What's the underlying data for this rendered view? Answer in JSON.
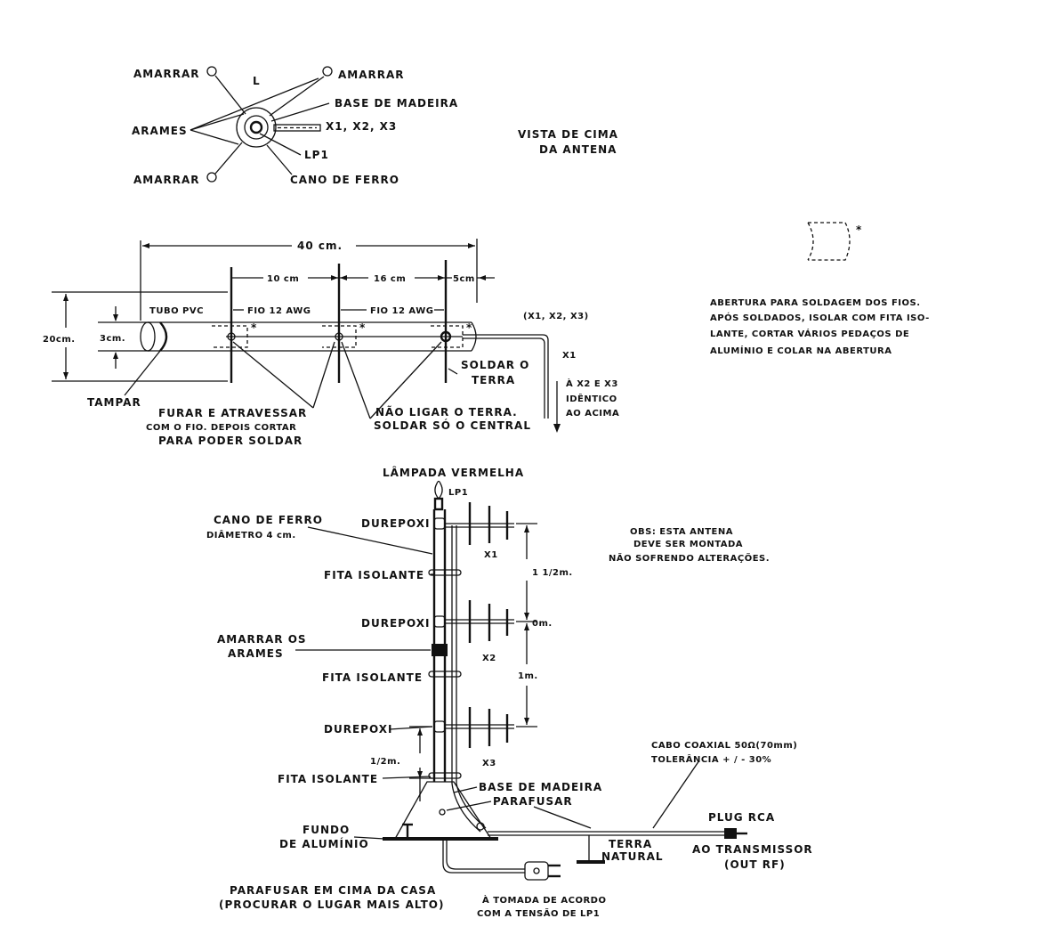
{
  "top_view": {
    "amarrar_tl": "AMARRAR",
    "amarrar_tr": "AMARRAR",
    "amarrar_bl": "AMARRAR",
    "l_label": "L",
    "base_madeira": "BASE DE MADEIRA",
    "arames": "ARAMES",
    "x_labels": "X1, X2, X3",
    "lp1": "LP1",
    "cano_ferro": "CANO DE FERRO",
    "title_line1": "VISTA DE CIMA",
    "title_line2": "DA ANTENA"
  },
  "detail": {
    "asterisk": "*",
    "note_lines": [
      "ABERTURA PARA SOLDAGEM DOS FIOS.",
      "APÓS SOLDADOS, ISOLAR COM FITA ISO-",
      "LANTE, CORTAR VÁRIOS PEDAÇOS DE",
      "ALUMÍNIO E COLAR NA ABERTURA"
    ]
  },
  "element": {
    "dim_40": "40 cm.",
    "dim_10": "10 cm",
    "dim_16": "16 cm",
    "dim_5": "5cm",
    "fio1": "FIO 12 AWG",
    "fio2": "FIO 12 AWG",
    "tubo_pvc": "TUBO PVC",
    "dim_20": "20cm.",
    "dim_3": "3cm.",
    "tampar": "TAMPAR",
    "x123": "(X1, X2, X3)",
    "x1": "X1",
    "soldar_line1": "SOLDAR O",
    "soldar_line2": "TERRA",
    "ax2_line1": "À X2 E X3",
    "ax2_line2": "IDÊNTICO",
    "ax2_line3": "AO ACIMA",
    "furar_line1": "FURAR E ATRAVESSAR",
    "furar_line2": "COM O FIO. DEPOIS CORTAR",
    "furar_line3": "PARA PODER SOLDAR",
    "nao_line1": "NÃO LIGAR O TERRA.",
    "nao_line2": "SOLDAR SÓ O CENTRAL"
  },
  "mast": {
    "lampada": "LÂMPADA VERMELHA",
    "lp1": "LP1",
    "cano_line1": "CANO DE FERRO",
    "cano_line2": "DIÂMETRO 4 cm.",
    "durepoxi1": "DUREPOXI",
    "durepoxi2": "DUREPOXI",
    "durepoxi3": "DUREPOXI",
    "fita1": "FITA ISOLANTE",
    "fita2": "FITA ISOLANTE",
    "fita3": "FITA ISOLANTE",
    "amarrar_line1": "AMARRAR OS",
    "amarrar_line2": "ARAMES",
    "x1": "X1",
    "x2": "X2",
    "x3": "X3",
    "dim_11_2": "1 1/2m.",
    "dim_0": "0m.",
    "dim_1": "1m.",
    "dim_1_2": "1/2m.",
    "obs_line1": "OBS: ESTA ANTENA",
    "obs_line2": "DEVE SER MONTADA",
    "obs_line3": "NÃO SOFRENDO ALTERAÇÕES.",
    "cabo_line1": "CABO COAXIAL 50Ω(70mm)",
    "cabo_line2": "TOLERÂNCIA + / - 30%",
    "base_madeira": "BASE DE MADEIRA",
    "parafusar": "PARAFUSAR",
    "plug_rca": "PLUG RCA",
    "ao_transmissor": "AO TRANSMISSOR",
    "out_rf": "(OUT RF)",
    "fundo_line1": "FUNDO",
    "fundo_line2": "DE ALUMÍNIO",
    "terra_line1": "TERRA",
    "terra_line2": "NATURAL",
    "parafusar_casa_line1": "PARAFUSAR EM CIMA DA CASA",
    "parafusar_casa_line2": "(PROCURAR O LUGAR MAIS ALTO)",
    "tomada_line1": "À TOMADA DE ACORDO",
    "tomada_line2": "COM A TENSÃO DE LP1"
  }
}
